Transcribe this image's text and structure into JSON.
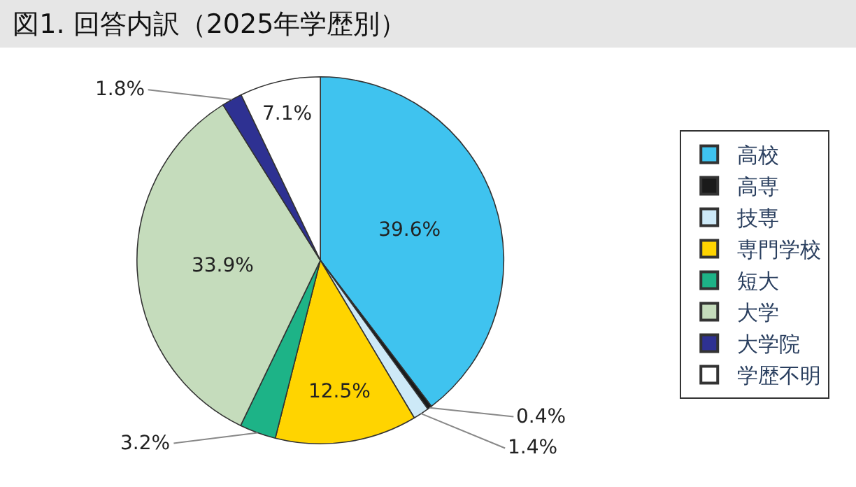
{
  "chart_data": {
    "type": "pie",
    "title": "図1. 回答内訳（2025年学歴別）",
    "categories": [
      "高校",
      "高専",
      "技専",
      "専門学校",
      "短大",
      "大学",
      "大学院",
      "学歴不明"
    ],
    "values": [
      39.6,
      0.4,
      1.4,
      12.5,
      3.2,
      33.9,
      1.8,
      7.1
    ],
    "value_labels": [
      "39.6%",
      "0.4%",
      "1.4%",
      "12.5%",
      "3.2%",
      "33.9%",
      "1.8%",
      "7.1%"
    ],
    "colors": [
      "#3fc3ef",
      "#1a1a1a",
      "#cde9f7",
      "#ffd400",
      "#1db387",
      "#c5dcbc",
      "#2e3192",
      "#ffffff"
    ],
    "legend": "right"
  }
}
